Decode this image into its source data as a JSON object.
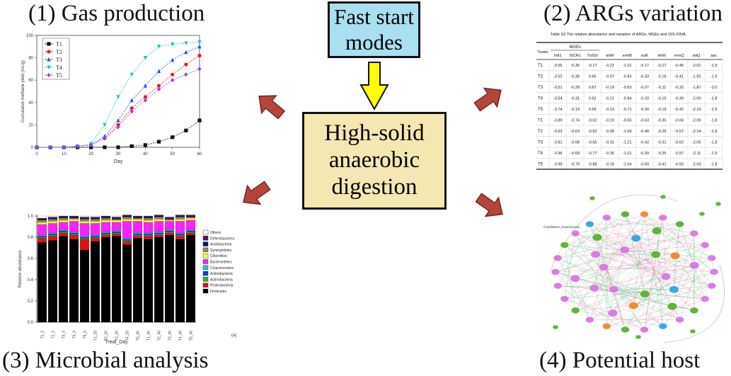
{
  "top_box": {
    "line1": "Fast start",
    "line2": "modes"
  },
  "center_box": {
    "line1": "High-solid",
    "line2": "anaerobic",
    "line3": "digestion"
  },
  "panels": {
    "gas": {
      "title": "(1) Gas production"
    },
    "args": {
      "title": "(2) ARGs variation"
    },
    "microbial": {
      "title": "(3) Microbial analysis"
    },
    "host": {
      "title": "(4) Potential host"
    }
  },
  "colors": {
    "top_box": "#a9dff0",
    "center_box": "#f4e7b1",
    "arrow_red": "#b5453c",
    "arrow_yellow": "#ffff00"
  },
  "gas_chart": {
    "type": "line",
    "xlabel": "Day",
    "ylabel": "Cumulative methane yield (mL/g)",
    "x_ticks": [
      "0",
      "10",
      "20",
      "30",
      "40",
      "50",
      "60"
    ],
    "y_ticks": [
      "0",
      "20",
      "40",
      "60",
      "80",
      "100"
    ],
    "xlim": [
      0,
      60
    ],
    "ylim": [
      0,
      100
    ],
    "x": [
      0,
      5,
      10,
      15,
      20,
      25,
      30,
      35,
      40,
      45,
      50,
      55,
      60
    ],
    "series": [
      {
        "name": "T1",
        "color": "#111111",
        "marker": "square",
        "values": [
          0,
          0,
          0,
          0,
          0,
          0,
          0,
          1,
          2,
          5,
          9,
          15,
          24
        ]
      },
      {
        "name": "T2",
        "color": "#e02020",
        "marker": "circle",
        "values": [
          0,
          0,
          0,
          1,
          2,
          8,
          20,
          35,
          45,
          55,
          65,
          74,
          82
        ]
      },
      {
        "name": "T3",
        "color": "#2050e0",
        "marker": "triangle",
        "values": [
          0,
          0,
          0,
          1,
          2,
          10,
          24,
          42,
          55,
          68,
          78,
          85,
          90
        ]
      },
      {
        "name": "T4",
        "color": "#20c0c0",
        "marker": "down-triangle",
        "values": [
          0,
          0,
          0,
          1,
          3,
          20,
          45,
          65,
          80,
          90,
          92,
          93,
          94
        ]
      },
      {
        "name": "T5",
        "color": "#a040e0",
        "marker": "diamond",
        "values": [
          0,
          0,
          0,
          1,
          2,
          8,
          18,
          32,
          42,
          52,
          60,
          65,
          70
        ]
      }
    ]
  },
  "args_table": {
    "caption": "Table S2 The relative abundance and variation of ARGs, MGEs and 16S rDNA",
    "group_header": "MGEs",
    "corner": "Treatm",
    "columns": [
      "IntI1",
      "ISCR1",
      "Tn916",
      "tetM",
      "ermB",
      "sulII",
      "tetW",
      "ermQ",
      "tetQ",
      "aac"
    ],
    "rows": [
      {
        "label": "T1",
        "values": [
          "-3.55",
          "-0.36",
          "-0.17",
          "-0.22",
          "-1.01",
          "-0.17",
          "-0.17",
          "-0.45",
          "-2.01",
          "-1.9"
        ]
      },
      {
        "label": "T2",
        "values": [
          "-3.52",
          "-0.36",
          "0.65",
          "-0.07",
          "-0.83",
          "-0.33",
          "-0.16",
          "-0.41",
          "-1.92",
          "-1.9"
        ]
      },
      {
        "label": "T3",
        "values": [
          "-3.51",
          "-0.28",
          "0.67",
          "-0.19",
          "-0.63",
          "-0.07",
          "-0.11",
          "-0.32",
          "-1.87",
          "-2.0"
        ]
      },
      {
        "label": "T4",
        "values": [
          "-3.54",
          "-0.31",
          "0.62",
          "-0.21",
          "-0.84",
          "-0.20",
          "-0.15",
          "-0.39",
          "-2.00",
          "-1.8"
        ]
      },
      {
        "label": "T5",
        "values": [
          "-3.74",
          "-0.19",
          "0.69",
          "-0.13",
          "-0.71",
          "-0.30",
          "-0.19",
          "-0.42",
          "-2.13",
          "-1.9"
        ]
      },
      {
        "label": "T1",
        "values": [
          "-3.89",
          "-0.74",
          "-0.62",
          "-0.23",
          "-0.55",
          "-0.63",
          "-0.35",
          "-0.66",
          "-2.06",
          "-1.8"
        ]
      },
      {
        "label": "T2",
        "values": [
          "-3.63",
          "-0.63",
          "-0.62",
          "-0.38",
          "-1.09",
          "-0.48",
          "-0.26",
          "-0.57",
          "-2.14",
          "-1.9"
        ]
      },
      {
        "label": "T3",
        "values": [
          "-3.81",
          "-0.68",
          "-0.65",
          "-0.31",
          "-1.21",
          "-0.42",
          "-0.31",
          "-0.62",
          "-2.05",
          "-1.8"
        ]
      },
      {
        "label": "T4",
        "values": [
          "-3.96",
          "-0.69",
          "-0.77",
          "-0.30",
          "-1.01",
          "-0.39",
          "-0.35",
          "-0.57",
          "-2.11",
          "-1.9"
        ]
      },
      {
        "label": "T5",
        "values": [
          "-3.99",
          "-0.79",
          "-0.88",
          "-0.18",
          "-1.04",
          "-0.60",
          "-0.41",
          "-0.50",
          "-2.03",
          "-1.8"
        ]
      }
    ]
  },
  "microbial_chart": {
    "type": "bar",
    "xlabel": "Treat_Day",
    "ylabel": "Relative abundance",
    "panel_label": "(a)",
    "y_ticks": [
      "0.0",
      "0.2",
      "0.4",
      "0.6",
      "0.8",
      "1.0"
    ],
    "ylim": [
      0,
      1
    ],
    "categories": [
      "T1_0",
      "T2_0",
      "T3_0",
      "T4_0",
      "T5_0",
      "T1_20",
      "T2_20",
      "T3_20",
      "T4_20",
      "T5_20",
      "T1_40",
      "T2_40",
      "T3_40",
      "T4_40",
      "T5_40"
    ],
    "series": [
      {
        "name": "Firmicutes",
        "color": "#000000",
        "values": [
          0.75,
          0.77,
          0.81,
          0.78,
          0.68,
          0.76,
          0.8,
          0.81,
          0.73,
          0.79,
          0.78,
          0.8,
          0.82,
          0.78,
          0.82
        ]
      },
      {
        "name": "Proteobacteria",
        "color": "#e01010",
        "values": [
          0.04,
          0.04,
          0.03,
          0.04,
          0.1,
          0.03,
          0.02,
          0.02,
          0.03,
          0.02,
          0.03,
          0.02,
          0.02,
          0.03,
          0.02
        ]
      },
      {
        "name": "Actinobacteria",
        "color": "#20c020",
        "values": [
          0.01,
          0.01,
          0.01,
          0.01,
          0.01,
          0.01,
          0.01,
          0.01,
          0.01,
          0.01,
          0.01,
          0.01,
          0.01,
          0.01,
          0.01
        ]
      },
      {
        "name": "Actinobacteria",
        "color": "#1040e0",
        "values": [
          0.01,
          0.01,
          0.01,
          0.01,
          0.01,
          0.01,
          0.01,
          0.01,
          0.01,
          0.01,
          0.01,
          0.01,
          0.01,
          0.01,
          0.01
        ]
      },
      {
        "name": "Cloacimonetes",
        "color": "#20c8e0",
        "values": [
          0.01,
          0.01,
          0.01,
          0.01,
          0.01,
          0.01,
          0.01,
          0.01,
          0.01,
          0.01,
          0.01,
          0.01,
          0.01,
          0.01,
          0.01
        ]
      },
      {
        "name": "Bacteroidetes",
        "color": "#ff20ff",
        "values": [
          0.1,
          0.09,
          0.07,
          0.1,
          0.12,
          0.11,
          0.09,
          0.08,
          0.16,
          0.11,
          0.1,
          0.1,
          0.08,
          0.11,
          0.09
        ]
      },
      {
        "name": "Chloroflexi",
        "color": "#ffff30",
        "values": [
          0.02,
          0.02,
          0.02,
          0.02,
          0.02,
          0.02,
          0.02,
          0.02,
          0.02,
          0.02,
          0.02,
          0.02,
          0.01,
          0.02,
          0.02
        ]
      },
      {
        "name": "Synergistetes",
        "color": "#909040",
        "values": [
          0.02,
          0.02,
          0.02,
          0.01,
          0.02,
          0.02,
          0.02,
          0.01,
          0.02,
          0.01,
          0.02,
          0.02,
          0.01,
          0.02,
          0.01
        ]
      },
      {
        "name": "Acidobacteria",
        "color": "#0a1a70",
        "values": [
          0.01,
          0.01,
          0.01,
          0.01,
          0.01,
          0.01,
          0.01,
          0.01,
          0.01,
          0.01,
          0.01,
          0.01,
          0.01,
          0.01,
          0.01
        ]
      },
      {
        "name": "Deferribacteres",
        "color": "#600a70",
        "values": [
          0.01,
          0.01,
          0.01,
          0.01,
          0.01,
          0.01,
          0.01,
          0.01,
          0.01,
          0.01,
          0.01,
          0.01,
          0.01,
          0.01,
          0.01
        ]
      },
      {
        "name": "Others",
        "color": "#ffffff",
        "values": [
          0.02,
          0.01,
          0.0,
          0.0,
          0.01,
          0.01,
          0.0,
          0.01,
          0.0,
          0.0,
          0.0,
          0.0,
          0.0,
          0.0,
          0.0
        ]
      }
    ]
  },
  "network": {
    "label": "Candidatus_Cloacimonas"
  }
}
